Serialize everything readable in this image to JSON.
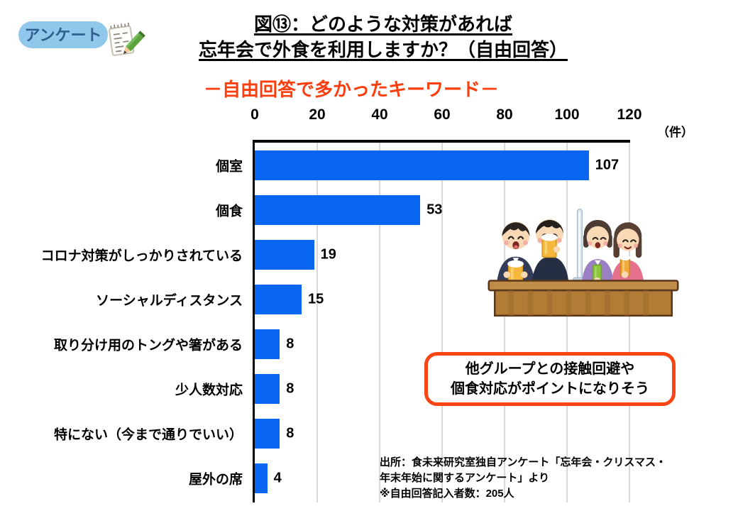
{
  "logo": {
    "label": "アンケート"
  },
  "header": {
    "title_line1": "図⑬：どのような対策があれば",
    "title_line2": "忘年会で外食を利用しますか？（自由回答）",
    "subtitle": "－自由回答で多かったキーワード－"
  },
  "chart_data": {
    "type": "bar",
    "orientation": "horizontal",
    "title": "－自由回答で多かったキーワード－",
    "unit_label": "（件）",
    "categories": [
      "個室",
      "個食",
      "コロナ対策がしっかりされている",
      "ソーシャルディスタンス",
      "取り分け用のトングや箸がある",
      "少人数対応",
      "特にない（今まで通りでいい）",
      "屋外の席"
    ],
    "values": [
      107,
      53,
      19,
      15,
      8,
      8,
      8,
      4
    ],
    "x_ticks": [
      0,
      20,
      40,
      60,
      80,
      100,
      120
    ],
    "xlim": [
      0,
      120
    ],
    "grid": true,
    "legend": false,
    "bar_color": "#0866F1",
    "gridline_color": "#D9D9D9"
  },
  "callout": {
    "lines": [
      "他グループとの接触回避や",
      "個食対応がポイントになりそう"
    ],
    "border_color": "#FA4413"
  },
  "source": {
    "lines": [
      "出所：食未来研究室独自アンケート「忘年会・クリスマス・",
      "年末年始に関するアンケート」より",
      "※自由回答記入者数：205人"
    ]
  },
  "colors": {
    "accent_orange": "#FB3E0E",
    "bar_blue": "#0866F1",
    "logo_pill": "#90C8EC",
    "logo_text": "#2F5F8F"
  }
}
